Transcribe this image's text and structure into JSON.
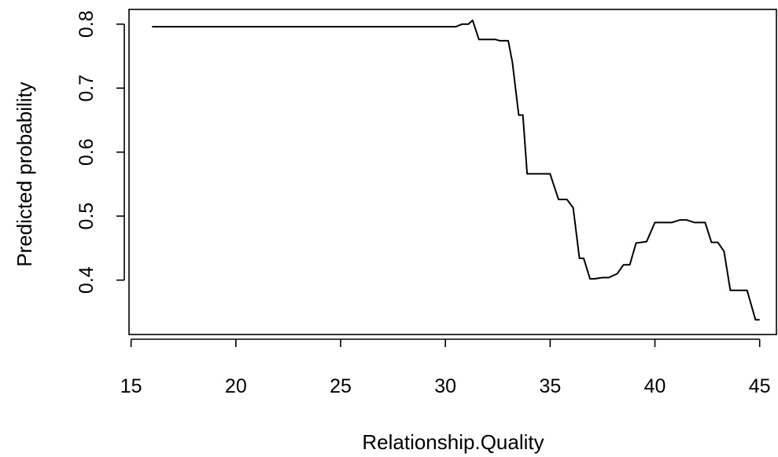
{
  "chart_data": {
    "type": "line",
    "title": "",
    "xlabel": "Relationship.Quality",
    "ylabel": "Predicted probability",
    "xlim": [
      14.9,
      45.8
    ],
    "ylim": [
      0.315,
      0.823
    ],
    "xticks": [
      15,
      20,
      25,
      30,
      35,
      40,
      45
    ],
    "xtick_labels": [
      "15",
      "20",
      "25",
      "30",
      "35",
      "40",
      "45"
    ],
    "yticks": [
      0.4,
      0.5,
      0.6,
      0.7,
      0.8
    ],
    "ytick_labels": [
      "0.4",
      "0.5",
      "0.6",
      "0.7",
      "0.8"
    ],
    "grid": false,
    "legend": "none",
    "line_color": "#000000",
    "series": [
      {
        "x": [
          16,
          30.5,
          30.8,
          31.1,
          31.3,
          31.6,
          32.4,
          32.6,
          33.0,
          33.2,
          33.5,
          33.7,
          33.9,
          34.2,
          35.0,
          35.4,
          35.8,
          36.1,
          36.4,
          36.6,
          36.9,
          37.1,
          37.5,
          37.8,
          38.2,
          38.5,
          38.8,
          39.1,
          39.6,
          40.0,
          40.3,
          40.8,
          41.2,
          41.5,
          41.9,
          42.4,
          42.7,
          43.0,
          43.3,
          43.6,
          44.4,
          44.8,
          45.0
        ],
        "y": [
          0.796,
          0.796,
          0.8,
          0.8,
          0.806,
          0.776,
          0.776,
          0.774,
          0.774,
          0.74,
          0.658,
          0.658,
          0.566,
          0.566,
          0.566,
          0.526,
          0.526,
          0.513,
          0.434,
          0.434,
          0.402,
          0.402,
          0.404,
          0.404,
          0.41,
          0.424,
          0.424,
          0.458,
          0.46,
          0.49,
          0.49,
          0.49,
          0.494,
          0.494,
          0.49,
          0.49,
          0.459,
          0.459,
          0.445,
          0.384,
          0.384,
          0.338,
          0.338
        ]
      }
    ]
  }
}
